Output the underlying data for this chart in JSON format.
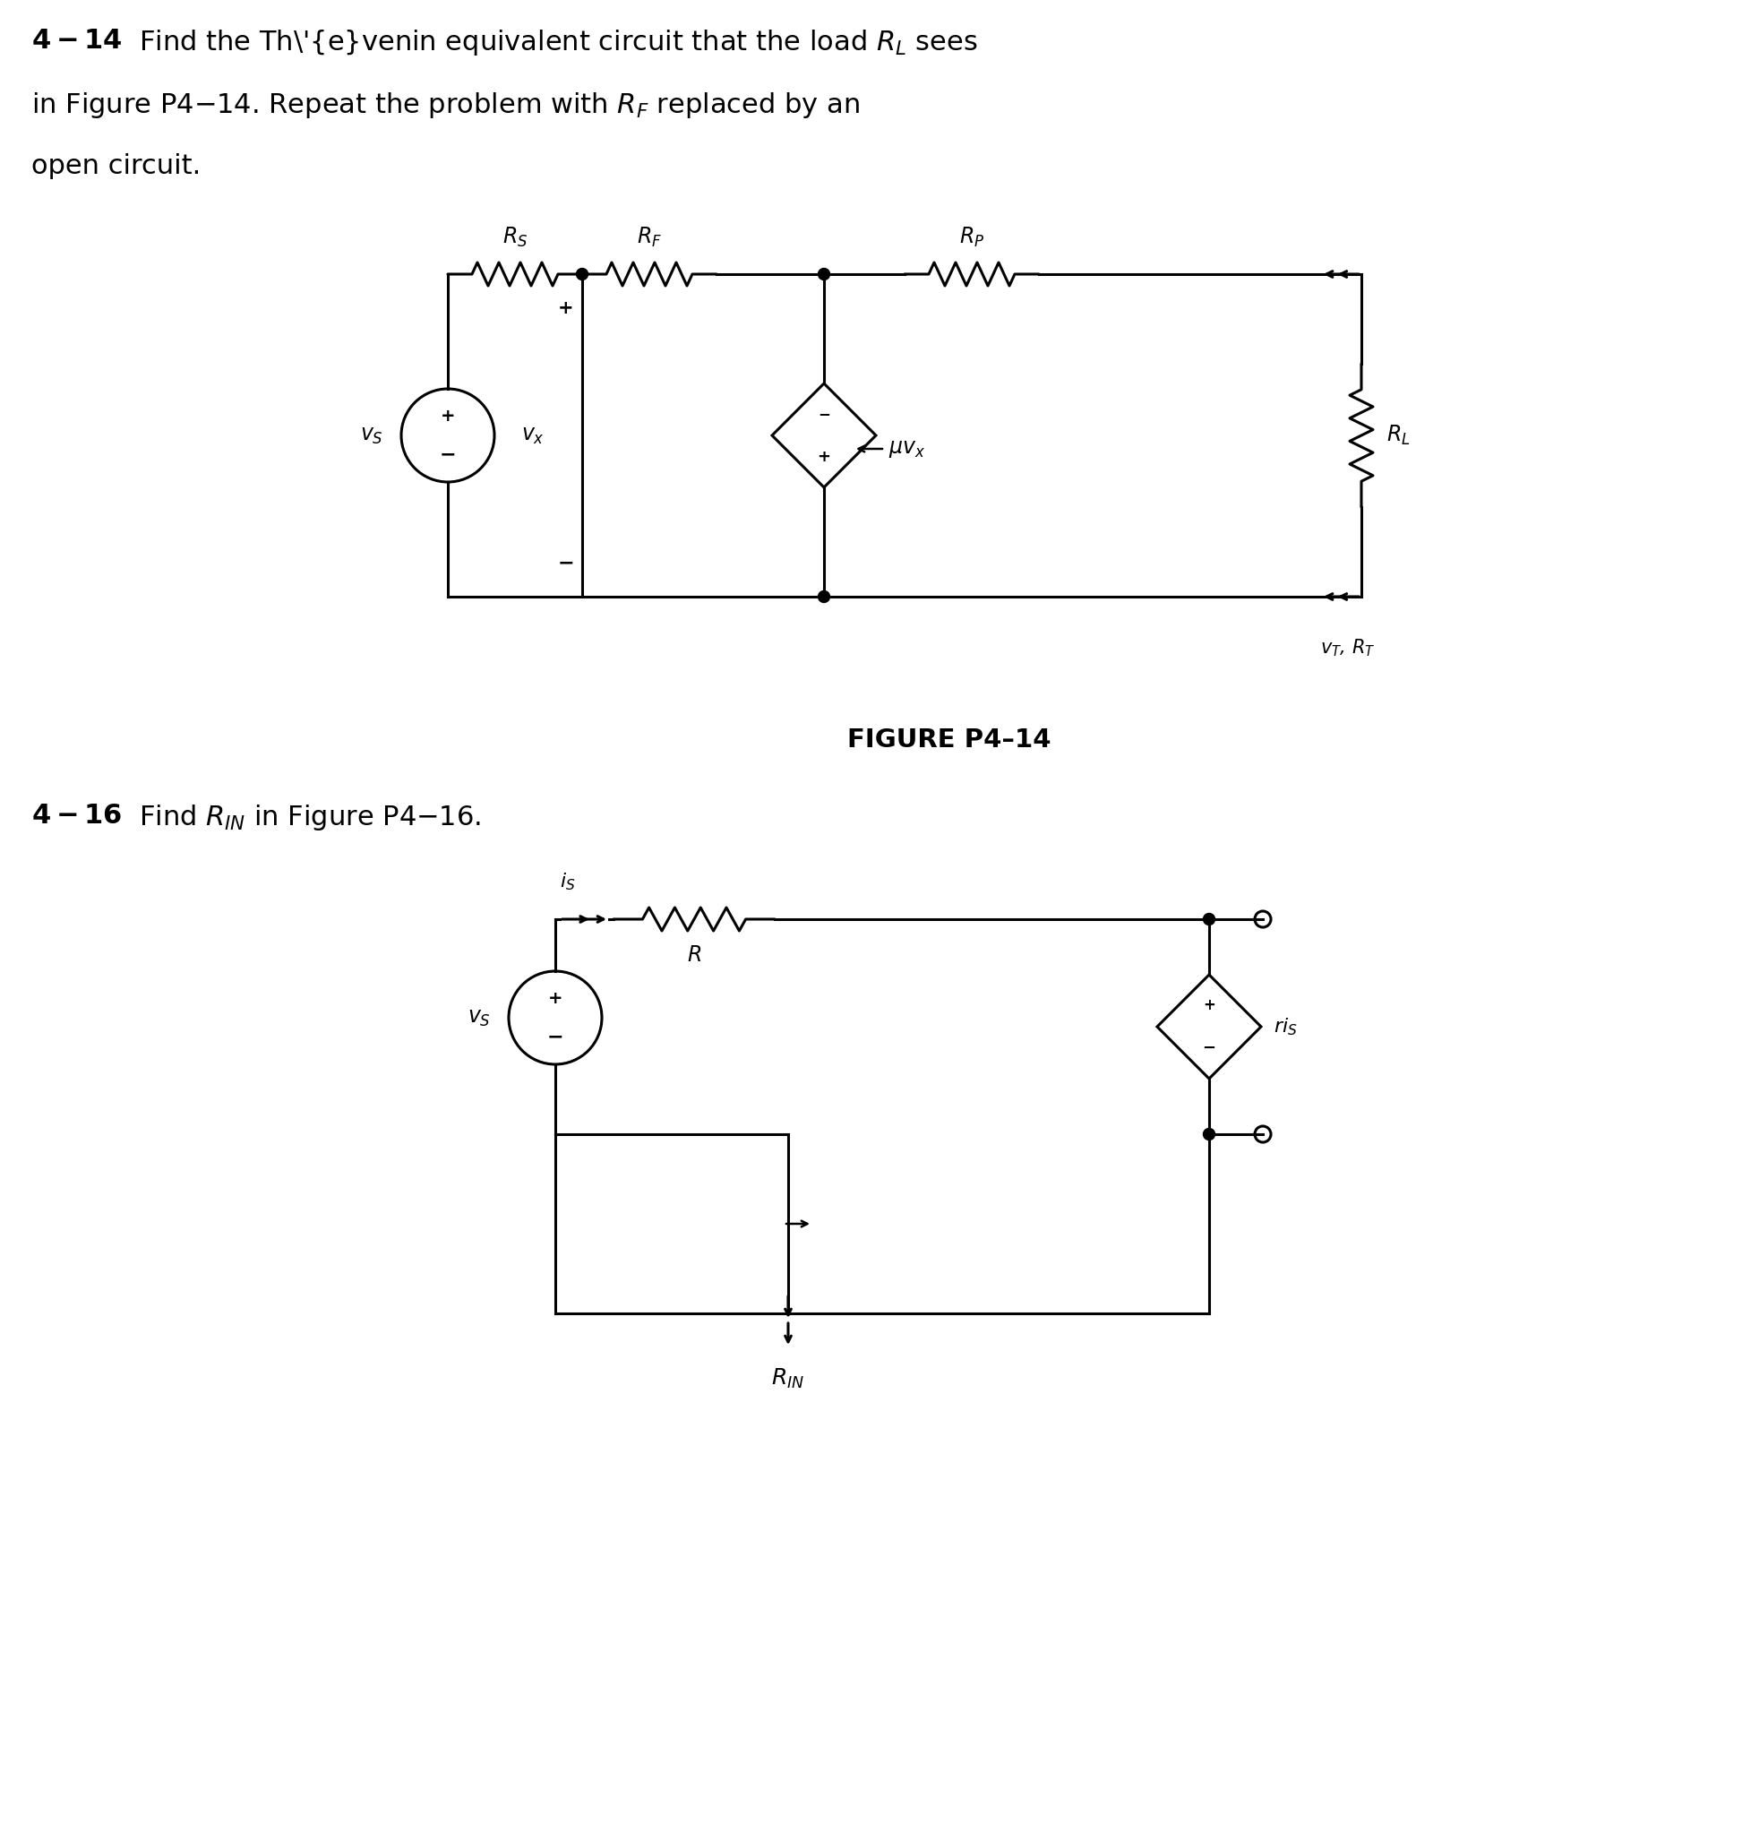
{
  "bg_color": "#ffffff",
  "fig_width": 19.45,
  "fig_height": 20.46
}
